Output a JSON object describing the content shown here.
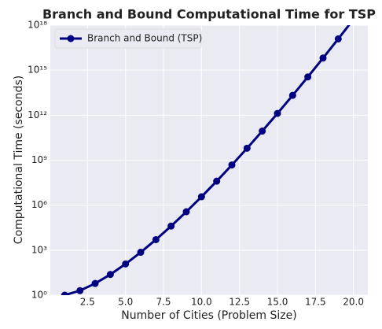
{
  "chart_data": {
    "type": "line",
    "title": "Branch and Bound Computational Time for TSP",
    "xlabel": "Number of Cities (Problem Size)",
    "ylabel": "Computational Time (seconds)",
    "x": [
      1,
      2,
      3,
      4,
      5,
      6,
      7,
      8,
      9,
      10,
      11,
      12,
      13,
      14,
      15,
      16,
      17,
      18,
      19,
      20
    ],
    "series": [
      {
        "name": "Branch and Bound (TSP)",
        "color": "#000080",
        "values": [
          1,
          2,
          6,
          24,
          120,
          720,
          5040,
          40320,
          362880,
          3628800,
          39916800,
          479001600,
          6227020800,
          87178291200,
          1307674368000,
          20922789888000,
          355687428096000,
          6402373705728000,
          121645100408832000,
          2432902008176640000
        ]
      }
    ],
    "xlim": [
      0.05,
      20.95
    ],
    "xticks": [
      2.5,
      5.0,
      7.5,
      10.0,
      12.5,
      15.0,
      17.5,
      20.0
    ],
    "ylim": [
      1,
      1e+18
    ],
    "yticks": [
      {
        "value": 1,
        "label": "10⁰"
      },
      {
        "value": 1000,
        "label": "10³"
      },
      {
        "value": 1000000,
        "label": "10⁶"
      },
      {
        "value": 1000000000,
        "label": "10⁹"
      },
      {
        "value": 1000000000000,
        "label": "10¹²"
      },
      {
        "value": 1000000000000000,
        "label": "10¹⁵"
      },
      {
        "value": 1000000000000000000,
        "label": "10¹⁸"
      }
    ],
    "log_y": true,
    "grid": true,
    "legend": "upper left"
  }
}
